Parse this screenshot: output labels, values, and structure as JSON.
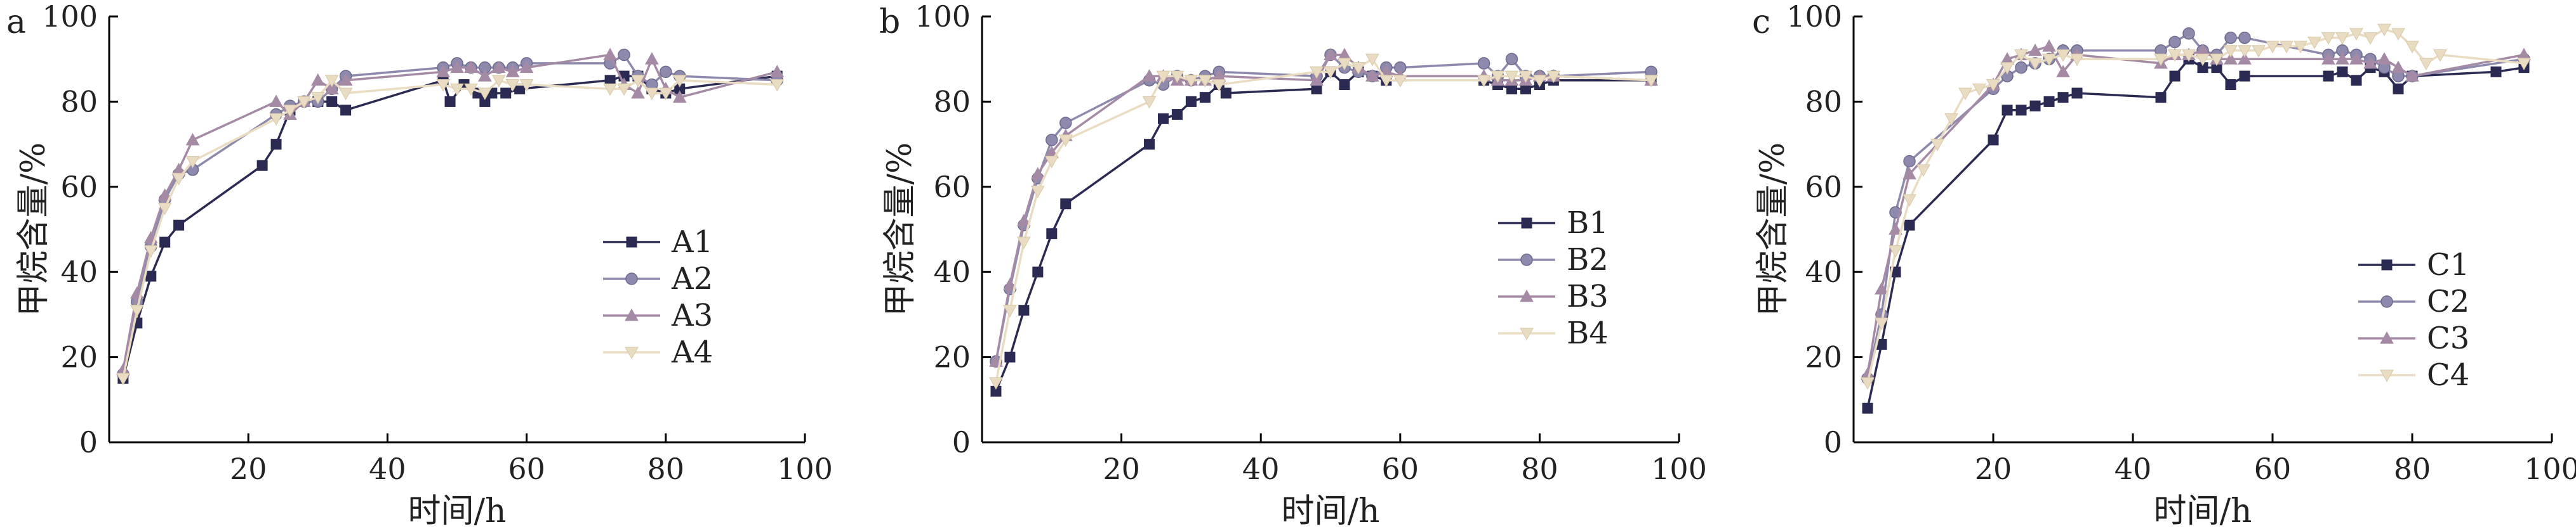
{
  "chart_data": [
    {
      "type": "line",
      "panel_label": "a",
      "xlabel": "时间/h",
      "ylabel": "甲烷含量/%",
      "xlim": [
        0,
        100
      ],
      "ylim": [
        0,
        100
      ],
      "xticks": [
        20,
        40,
        60,
        80,
        100
      ],
      "yticks": [
        0,
        20,
        40,
        60,
        80,
        100
      ],
      "legend_position": "center-right",
      "series": [
        {
          "name": "A1",
          "marker": "square",
          "color": "#2b2a52",
          "x": [
            2,
            4,
            6,
            8,
            10,
            22,
            24,
            26,
            28,
            30,
            32,
            34,
            48,
            49,
            51,
            53,
            54,
            55,
            57,
            59,
            72,
            74,
            76,
            78,
            80,
            82,
            96
          ],
          "y": [
            15,
            28,
            39,
            47,
            51,
            65,
            70,
            78,
            80,
            80,
            80,
            78,
            85,
            80,
            84,
            82,
            80,
            82,
            82,
            83,
            85,
            86,
            86,
            83,
            82,
            83,
            86
          ]
        },
        {
          "name": "A2",
          "marker": "circle",
          "color": "#8e8aae",
          "x": [
            2,
            4,
            6,
            8,
            10,
            12,
            24,
            26,
            28,
            30,
            32,
            34,
            48,
            50,
            52,
            54,
            56,
            58,
            60,
            72,
            74,
            76,
            78,
            80,
            82,
            96
          ],
          "y": [
            16,
            33,
            46,
            57,
            63,
            64,
            77,
            79,
            80,
            80,
            83,
            86,
            88,
            89,
            88,
            88,
            88,
            88,
            89,
            89,
            91,
            86,
            84,
            87,
            86,
            85
          ]
        },
        {
          "name": "A3",
          "marker": "triangle",
          "color": "#a58aa5",
          "x": [
            2,
            4,
            6,
            8,
            10,
            12,
            24,
            26,
            28,
            30,
            32,
            34,
            48,
            50,
            52,
            54,
            56,
            58,
            60,
            72,
            74,
            76,
            78,
            80,
            82,
            96
          ],
          "y": [
            17,
            35,
            48,
            58,
            64,
            71,
            80,
            77,
            80,
            85,
            83,
            85,
            87,
            88,
            88,
            86,
            88,
            87,
            88,
            91,
            84,
            82,
            90,
            83,
            81,
            87
          ]
        },
        {
          "name": "A4",
          "marker": "down-triangle",
          "color": "#e9dcc2",
          "x": [
            2,
            4,
            6,
            8,
            10,
            12,
            24,
            26,
            28,
            30,
            32,
            34,
            48,
            50,
            52,
            54,
            56,
            58,
            60,
            72,
            74,
            76,
            78,
            80,
            82,
            96
          ],
          "y": [
            15,
            31,
            45,
            55,
            62,
            66,
            76,
            78,
            80,
            81,
            85,
            82,
            84,
            83,
            83,
            82,
            85,
            84,
            84,
            83,
            83,
            85,
            82,
            82,
            85,
            84
          ]
        }
      ]
    },
    {
      "type": "line",
      "panel_label": "b",
      "xlabel": "时间/h",
      "ylabel": "甲烷含量/%",
      "xlim": [
        0,
        100
      ],
      "ylim": [
        0,
        100
      ],
      "xticks": [
        20,
        40,
        60,
        80,
        100
      ],
      "yticks": [
        0,
        20,
        40,
        60,
        80,
        100
      ],
      "legend_position": "center-right",
      "series": [
        {
          "name": "B1",
          "marker": "square",
          "color": "#2b2a52",
          "x": [
            2,
            4,
            6,
            8,
            10,
            12,
            24,
            26,
            28,
            30,
            32,
            34,
            35,
            48,
            50,
            52,
            54,
            56,
            58,
            72,
            74,
            76,
            78,
            80,
            82,
            96
          ],
          "y": [
            12,
            20,
            31,
            40,
            49,
            56,
            70,
            76,
            77,
            80,
            81,
            84,
            82,
            83,
            87,
            84,
            87,
            86,
            85,
            85,
            84,
            83,
            83,
            84,
            85,
            85
          ]
        },
        {
          "name": "B2",
          "marker": "circle",
          "color": "#8e8aae",
          "x": [
            2,
            4,
            6,
            8,
            10,
            12,
            24,
            26,
            28,
            30,
            32,
            34,
            48,
            50,
            52,
            54,
            56,
            58,
            60,
            72,
            74,
            76,
            78,
            80,
            82,
            96
          ],
          "y": [
            19,
            36,
            51,
            62,
            71,
            75,
            85,
            84,
            86,
            85,
            86,
            87,
            86,
            91,
            88,
            87,
            86,
            88,
            88,
            89,
            86,
            90,
            86,
            86,
            86,
            87
          ]
        },
        {
          "name": "B3",
          "marker": "triangle",
          "color": "#a58aa5",
          "x": [
            2,
            4,
            6,
            8,
            10,
            12,
            24,
            26,
            28,
            30,
            32,
            34,
            48,
            50,
            52,
            54,
            56,
            58,
            60,
            72,
            74,
            76,
            78,
            80,
            82,
            96
          ],
          "y": [
            19,
            37,
            52,
            63,
            68,
            72,
            86,
            86,
            85,
            85,
            85,
            86,
            85,
            91,
            91,
            88,
            86,
            87,
            86,
            86,
            85,
            85,
            85,
            86,
            86,
            85
          ]
        },
        {
          "name": "B4",
          "marker": "down-triangle",
          "color": "#e9dcc2",
          "x": [
            2,
            4,
            6,
            8,
            10,
            12,
            24,
            26,
            28,
            30,
            32,
            34,
            48,
            50,
            52,
            54,
            56,
            58,
            60,
            72,
            74,
            76,
            78,
            80,
            82,
            96
          ],
          "y": [
            14,
            31,
            47,
            59,
            66,
            71,
            80,
            86,
            86,
            85,
            85,
            84,
            87,
            87,
            89,
            88,
            90,
            85,
            85,
            85,
            86,
            86,
            86,
            85,
            86,
            85
          ]
        }
      ]
    },
    {
      "type": "line",
      "panel_label": "c",
      "xlabel": "时间/h",
      "ylabel": "甲烷含量/%",
      "xlim": [
        0,
        100
      ],
      "ylim": [
        0,
        100
      ],
      "xticks": [
        20,
        40,
        60,
        80,
        100
      ],
      "yticks": [
        0,
        20,
        40,
        60,
        80,
        100
      ],
      "legend_position": "center-right",
      "series": [
        {
          "name": "C1",
          "marker": "square",
          "color": "#2b2a52",
          "x": [
            2,
            4,
            6,
            8,
            20,
            22,
            24,
            26,
            28,
            30,
            32,
            44,
            46,
            48,
            50,
            52,
            54,
            56,
            68,
            70,
            72,
            74,
            76,
            78,
            80,
            92,
            96
          ],
          "y": [
            8,
            23,
            40,
            51,
            71,
            78,
            78,
            79,
            80,
            81,
            82,
            81,
            86,
            90,
            88,
            88,
            84,
            86,
            86,
            87,
            85,
            88,
            87,
            83,
            86,
            87,
            88
          ]
        },
        {
          "name": "C2",
          "marker": "circle",
          "color": "#8e8aae",
          "x": [
            2,
            4,
            6,
            8,
            20,
            22,
            24,
            26,
            28,
            30,
            32,
            44,
            46,
            48,
            50,
            52,
            54,
            56,
            68,
            70,
            72,
            74,
            76,
            78,
            80,
            96
          ],
          "y": [
            15,
            30,
            54,
            66,
            83,
            86,
            88,
            89,
            90,
            92,
            92,
            92,
            94,
            96,
            92,
            91,
            95,
            95,
            91,
            92,
            91,
            90,
            88,
            86,
            86,
            90
          ]
        },
        {
          "name": "C3",
          "marker": "triangle",
          "color": "#a58aa5",
          "x": [
            2,
            4,
            6,
            8,
            20,
            22,
            24,
            26,
            28,
            30,
            32,
            44,
            46,
            48,
            50,
            52,
            54,
            56,
            68,
            70,
            72,
            74,
            76,
            78,
            80,
            96
          ],
          "y": [
            16,
            36,
            50,
            63,
            84,
            90,
            91,
            92,
            93,
            87,
            91,
            89,
            91,
            91,
            92,
            90,
            90,
            90,
            90,
            90,
            90,
            89,
            90,
            88,
            86,
            91
          ]
        },
        {
          "name": "C4",
          "marker": "down-triangle",
          "color": "#e9dcc2",
          "x": [
            2,
            4,
            6,
            8,
            10,
            12,
            14,
            16,
            18,
            20,
            22,
            24,
            26,
            28,
            30,
            32,
            44,
            46,
            48,
            50,
            52,
            54,
            56,
            58,
            60,
            62,
            64,
            66,
            68,
            70,
            72,
            74,
            76,
            78,
            80,
            82,
            84,
            96
          ],
          "y": [
            14,
            28,
            45,
            57,
            64,
            70,
            76,
            82,
            83,
            84,
            88,
            91,
            89,
            90,
            91,
            90,
            90,
            91,
            91,
            90,
            90,
            92,
            92,
            92,
            93,
            93,
            93,
            94,
            95,
            95,
            96,
            95,
            97,
            96,
            93,
            89,
            91,
            89
          ]
        }
      ]
    }
  ]
}
